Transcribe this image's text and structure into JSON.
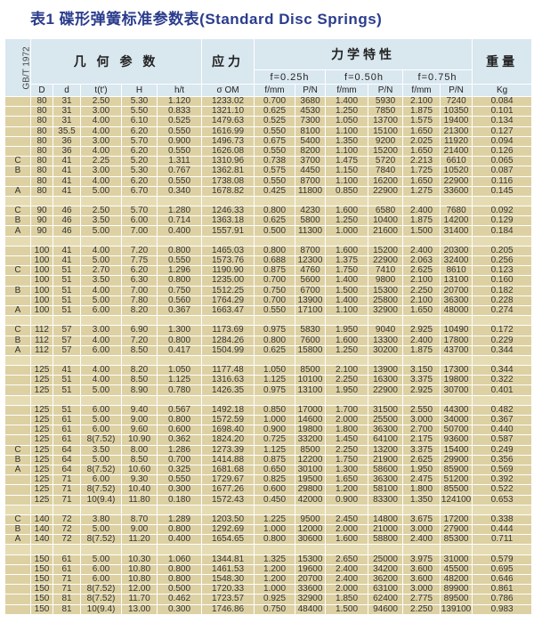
{
  "title": "表1  碟形弹簧标准参数表(Standard Disc Springs)",
  "header": {
    "standard": "GB/T 1972",
    "geometry": "几 何 参 数",
    "stress": "应力",
    "mechanics": "力学特性",
    "weight": "重量",
    "f025": "f=0.25h",
    "f050": "f=0.50h",
    "f075": "f=0.75h",
    "columns": [
      "D",
      "d",
      "t(t')",
      "H",
      "h/t",
      "σ OM",
      "f/mm",
      "P/N",
      "f/mm",
      "P/N",
      "f/mm",
      "P/N",
      "Kg"
    ]
  },
  "rows": [
    [
      "",
      "80",
      "31",
      "2.50",
      "5.30",
      "1.120",
      "1233.02",
      "0.700",
      "3680",
      "1.400",
      "5930",
      "2.100",
      "7240",
      "0.084"
    ],
    [
      "",
      "80",
      "31",
      "3.00",
      "5.50",
      "0.833",
      "1321.10",
      "0.625",
      "4530",
      "1.250",
      "7850",
      "1.875",
      "10350",
      "0.101"
    ],
    [
      "",
      "80",
      "31",
      "4.00",
      "6.10",
      "0.525",
      "1479.63",
      "0.525",
      "7300",
      "1.050",
      "13700",
      "1.575",
      "19400",
      "0.134"
    ],
    [
      "",
      "80",
      "35.5",
      "4.00",
      "6.20",
      "0.550",
      "1616.99",
      "0.550",
      "8100",
      "1.100",
      "15100",
      "1.650",
      "21300",
      "0.127"
    ],
    [
      "",
      "80",
      "36",
      "3.00",
      "5.70",
      "0.900",
      "1496.73",
      "0.675",
      "5400",
      "1.350",
      "9200",
      "2.025",
      "11920",
      "0.094"
    ],
    [
      "",
      "80",
      "36",
      "4.00",
      "6.20",
      "0.550",
      "1626.08",
      "0.550",
      "8200",
      "1.100",
      "15200",
      "1.650",
      "21400",
      "0.126"
    ],
    [
      "C",
      "80",
      "41",
      "2.25",
      "5.20",
      "1.311",
      "1310.96",
      "0.738",
      "3700",
      "1.475",
      "5720",
      "2.213",
      "6610",
      "0.065"
    ],
    [
      "B",
      "80",
      "41",
      "3.00",
      "5.30",
      "0.767",
      "1362.81",
      "0.575",
      "4450",
      "1.150",
      "7840",
      "1.725",
      "10520",
      "0.087"
    ],
    [
      "",
      "80",
      "41",
      "4.00",
      "6.20",
      "0.550",
      "1738.08",
      "0.550",
      "8700",
      "1.100",
      "16200",
      "1.650",
      "22900",
      "0.116"
    ],
    [
      "A",
      "80",
      "41",
      "5.00",
      "6.70",
      "0.340",
      "1678.82",
      "0.425",
      "11800",
      "0.850",
      "22900",
      "1.275",
      "33600",
      "0.145"
    ],
    [],
    [
      "C",
      "90",
      "46",
      "2.50",
      "5.70",
      "1.280",
      "1246.33",
      "0.800",
      "4230",
      "1.600",
      "6580",
      "2.400",
      "7680",
      "0.092"
    ],
    [
      "B",
      "90",
      "46",
      "3.50",
      "6.00",
      "0.714",
      "1363.18",
      "0.625",
      "5800",
      "1.250",
      "10400",
      "1.875",
      "14200",
      "0.129"
    ],
    [
      "A",
      "90",
      "46",
      "5.00",
      "7.00",
      "0.400",
      "1557.91",
      "0.500",
      "11300",
      "1.000",
      "21600",
      "1.500",
      "31400",
      "0.184"
    ],
    [],
    [
      "",
      "100",
      "41",
      "4.00",
      "7.20",
      "0.800",
      "1465.03",
      "0.800",
      "8700",
      "1.600",
      "15200",
      "2.400",
      "20300",
      "0.205"
    ],
    [
      "",
      "100",
      "41",
      "5.00",
      "7.75",
      "0.550",
      "1573.76",
      "0.688",
      "12300",
      "1.375",
      "22900",
      "2.063",
      "32400",
      "0.256"
    ],
    [
      "C",
      "100",
      "51",
      "2.70",
      "6.20",
      "1.296",
      "1190.90",
      "0.875",
      "4760",
      "1.750",
      "7410",
      "2.625",
      "8610",
      "0.123"
    ],
    [
      "",
      "100",
      "51",
      "3.50",
      "6.30",
      "0.800",
      "1235.00",
      "0.700",
      "5600",
      "1.400",
      "9800",
      "2.100",
      "13100",
      "0.160"
    ],
    [
      "B",
      "100",
      "51",
      "4.00",
      "7.00",
      "0.750",
      "1512.25",
      "0.750",
      "6700",
      "1.500",
      "15300",
      "2.250",
      "20700",
      "0.182"
    ],
    [
      "",
      "100",
      "51",
      "5.00",
      "7.80",
      "0.560",
      "1764.29",
      "0.700",
      "13900",
      "1.400",
      "25800",
      "2.100",
      "36300",
      "0.228"
    ],
    [
      "A",
      "100",
      "51",
      "6.00",
      "8.20",
      "0.367",
      "1663.47",
      "0.550",
      "17100",
      "1.100",
      "32900",
      "1.650",
      "48000",
      "0.274"
    ],
    [],
    [
      "C",
      "112",
      "57",
      "3.00",
      "6.90",
      "1.300",
      "1173.69",
      "0.975",
      "5830",
      "1.950",
      "9040",
      "2.925",
      "10490",
      "0.172"
    ],
    [
      "B",
      "112",
      "57",
      "4.00",
      "7.20",
      "0.800",
      "1284.26",
      "0.800",
      "7600",
      "1.600",
      "13300",
      "2.400",
      "17800",
      "0.229"
    ],
    [
      "A",
      "112",
      "57",
      "6.00",
      "8.50",
      "0.417",
      "1504.99",
      "0.625",
      "15800",
      "1.250",
      "30200",
      "1.875",
      "43700",
      "0.344"
    ],
    [],
    [
      "",
      "125",
      "41",
      "4.00",
      "8.20",
      "1.050",
      "1177.48",
      "1.050",
      "8500",
      "2.100",
      "13900",
      "3.150",
      "17300",
      "0.344"
    ],
    [
      "",
      "125",
      "51",
      "4.00",
      "8.50",
      "1.125",
      "1316.63",
      "1.125",
      "10100",
      "2.250",
      "16300",
      "3.375",
      "19800",
      "0.322"
    ],
    [
      "",
      "125",
      "51",
      "5.00",
      "8.90",
      "0.780",
      "1426.35",
      "0.975",
      "13100",
      "1.950",
      "22900",
      "2.925",
      "30700",
      "0.401"
    ],
    [],
    [
      "",
      "125",
      "51",
      "6.00",
      "9.40",
      "0.567",
      "1492.18",
      "0.850",
      "17000",
      "1.700",
      "31500",
      "2.550",
      "44300",
      "0.482"
    ],
    [
      "",
      "125",
      "61",
      "5.00",
      "9.00",
      "0.800",
      "1572.59",
      "1.000",
      "14600",
      "2.000",
      "25500",
      "3.000",
      "34000",
      "0.367"
    ],
    [
      "",
      "125",
      "61",
      "6.00",
      "9.60",
      "0.600",
      "1698.40",
      "0.900",
      "19800",
      "1.800",
      "36300",
      "2.700",
      "50700",
      "0.440"
    ],
    [
      "",
      "125",
      "61",
      "8(7.52)",
      "10.90",
      "0.362",
      "1824.20",
      "0.725",
      "33200",
      "1.450",
      "64100",
      "2.175",
      "93600",
      "0.587"
    ],
    [
      "C",
      "125",
      "64",
      "3.50",
      "8.00",
      "1.286",
      "1273.39",
      "1.125",
      "8500",
      "2.250",
      "13200",
      "3.375",
      "15400",
      "0.249"
    ],
    [
      "B",
      "125",
      "64",
      "5.00",
      "8.50",
      "0.700",
      "1414.88",
      "0.875",
      "12200",
      "1.750",
      "21900",
      "2.625",
      "29900",
      "0.356"
    ],
    [
      "A",
      "125",
      "64",
      "8(7.52)",
      "10.60",
      "0.325",
      "1681.68",
      "0.650",
      "30100",
      "1.300",
      "58600",
      "1.950",
      "85900",
      "0.569"
    ],
    [
      "",
      "125",
      "71",
      "6.00",
      "9.30",
      "0.550",
      "1729.67",
      "0.825",
      "19500",
      "1.650",
      "36300",
      "2.475",
      "51200",
      "0.392"
    ],
    [
      "",
      "125",
      "71",
      "8(7.52)",
      "10.40",
      "0.300",
      "1677.26",
      "0.600",
      "29800",
      "1.200",
      "58100",
      "1.800",
      "85500",
      "0.522"
    ],
    [
      "",
      "125",
      "71",
      "10(9.4)",
      "11.80",
      "0.180",
      "1572.43",
      "0.450",
      "42000",
      "0.900",
      "83300",
      "1.350",
      "124100",
      "0.653"
    ],
    [],
    [
      "C",
      "140",
      "72",
      "3.80",
      "8.70",
      "1.289",
      "1203.50",
      "1.225",
      "9500",
      "2.450",
      "14800",
      "3.675",
      "17200",
      "0.338"
    ],
    [
      "B",
      "140",
      "72",
      "5.00",
      "9.00",
      "0.800",
      "1292.69",
      "1.000",
      "12000",
      "2.000",
      "21000",
      "3.000",
      "27900",
      "0.444"
    ],
    [
      "A",
      "140",
      "72",
      "8(7.52)",
      "11.20",
      "0.400",
      "1654.65",
      "0.800",
      "30600",
      "1.600",
      "58800",
      "2.400",
      "85300",
      "0.711"
    ],
    [],
    [
      "",
      "150",
      "61",
      "5.00",
      "10.30",
      "1.060",
      "1344.81",
      "1.325",
      "15300",
      "2.650",
      "25000",
      "3.975",
      "31000",
      "0.579"
    ],
    [
      "",
      "150",
      "61",
      "6.00",
      "10.80",
      "0.800",
      "1461.53",
      "1.200",
      "19600",
      "2.400",
      "34200",
      "3.600",
      "45500",
      "0.695"
    ],
    [
      "",
      "150",
      "71",
      "6.00",
      "10.80",
      "0.800",
      "1548.30",
      "1.200",
      "20700",
      "2.400",
      "36200",
      "3.600",
      "48200",
      "0.646"
    ],
    [
      "",
      "150",
      "71",
      "8(7.52)",
      "12.00",
      "0.500",
      "1720.33",
      "1.000",
      "33600",
      "2.000",
      "63100",
      "3.000",
      "89900",
      "0.861"
    ],
    [
      "",
      "150",
      "81",
      "8(7.52)",
      "11.70",
      "0.462",
      "1723.57",
      "0.925",
      "32900",
      "1.850",
      "62400",
      "2.775",
      "89500",
      "0.786"
    ],
    [
      "",
      "150",
      "81",
      "10(9.4)",
      "13.00",
      "0.300",
      "1746.86",
      "0.750",
      "48400",
      "1.500",
      "94600",
      "2.250",
      "139100",
      "0.983"
    ]
  ]
}
